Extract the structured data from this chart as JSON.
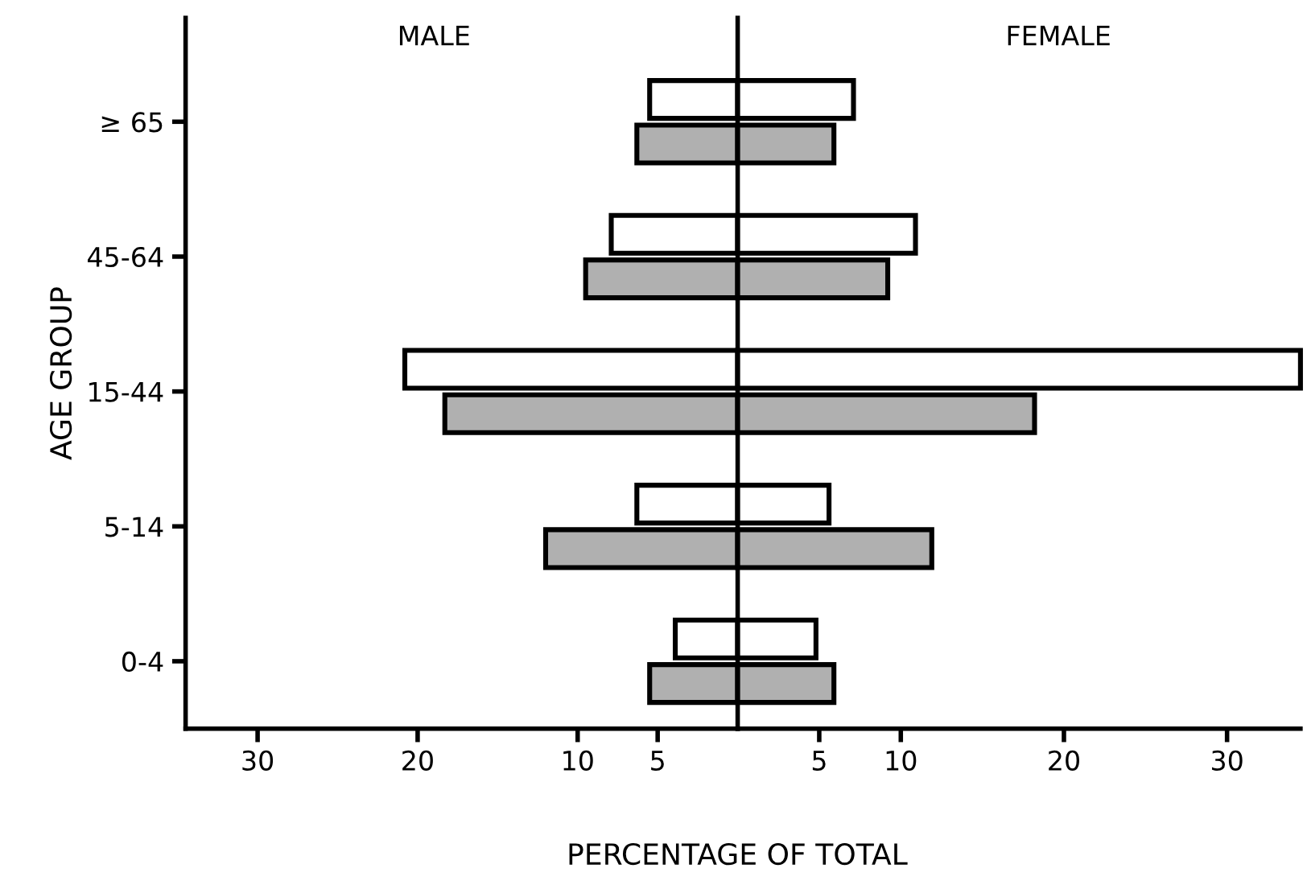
{
  "chart_data": [
    {
      "type": "bar",
      "orientation": "horizontal",
      "title": "MALE",
      "xlabel": "PERCENTAGE OF TOTAL",
      "ylabel": "AGE GROUP",
      "categories": [
        "≥ 65",
        "45-64",
        "15-44",
        "5-14",
        "0-4"
      ],
      "series": [
        {
          "color": "#ffffff",
          "values": [
            5.5,
            7.9,
            20.8,
            6.3,
            3.9
          ]
        },
        {
          "color": "#b0b0b0",
          "values": [
            6.3,
            9.5,
            18.3,
            12.0,
            5.5
          ]
        }
      ],
      "xlim": [
        34.5,
        0
      ],
      "xticks": [
        30,
        20,
        10,
        5
      ],
      "grid": false,
      "legend": false
    },
    {
      "type": "bar",
      "orientation": "horizontal",
      "title": "FEMALE",
      "categories": [
        null,
        null,
        null,
        null,
        null
      ],
      "series": [
        {
          "color": "#ffffff",
          "values": [
            7.1,
            10.9,
            34.5,
            5.6,
            4.8
          ]
        },
        {
          "color": "#b0b0b0",
          "values": [
            5.9,
            9.2,
            18.2,
            11.9,
            5.9
          ]
        }
      ],
      "xlim": [
        0,
        34.5
      ],
      "xticks": [
        5,
        10,
        20,
        30
      ],
      "grid": false,
      "legend": false
    }
  ]
}
